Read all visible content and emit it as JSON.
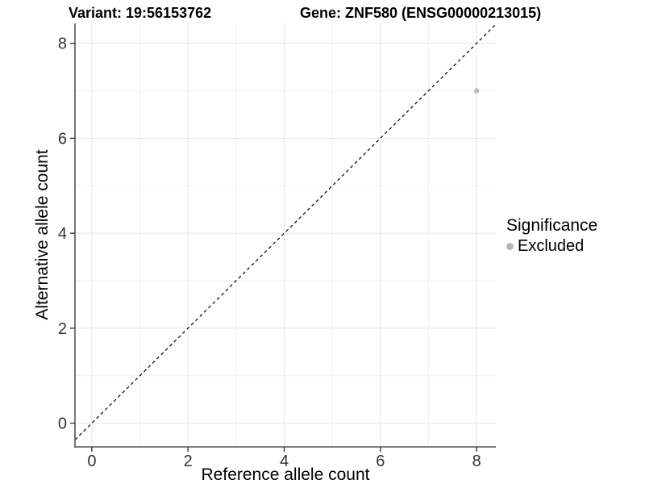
{
  "header": {
    "title_left": "Variant: 19:56153762",
    "title_right": "Gene: ZNF580 (ENSG00000213015)"
  },
  "chart_data": {
    "type": "scatter",
    "titles": [
      "Variant: 19:56153762",
      "Gene: ZNF580 (ENSG00000213015)"
    ],
    "xlabel": "Reference allele count",
    "ylabel": "Alternative allele count",
    "xlim": [
      -0.35,
      8.4
    ],
    "ylim": [
      -0.5,
      8.42
    ],
    "xticks": [
      0,
      2,
      4,
      6,
      8
    ],
    "yticks": [
      0,
      2,
      4,
      6,
      8
    ],
    "grid": {
      "every": 1,
      "major_every": 2
    },
    "points": [
      {
        "x": 8,
        "y": 7,
        "significance": "Excluded"
      }
    ],
    "abline": {
      "slope": 1,
      "intercept": 0,
      "style": "dashed",
      "color": "#000000"
    },
    "legend": {
      "title": "Significance",
      "position": "right",
      "entries": [
        {
          "label": "Excluded",
          "color": "#b5b5b5"
        }
      ]
    },
    "colors": {
      "point": "#bdbdbd",
      "grid_major": "#e5e5e5",
      "grid_minor": "#f1f1f1",
      "axis_line": "#555555",
      "tick_mark": "#333333",
      "tick_label": "#333333",
      "background": "#ffffff"
    }
  }
}
